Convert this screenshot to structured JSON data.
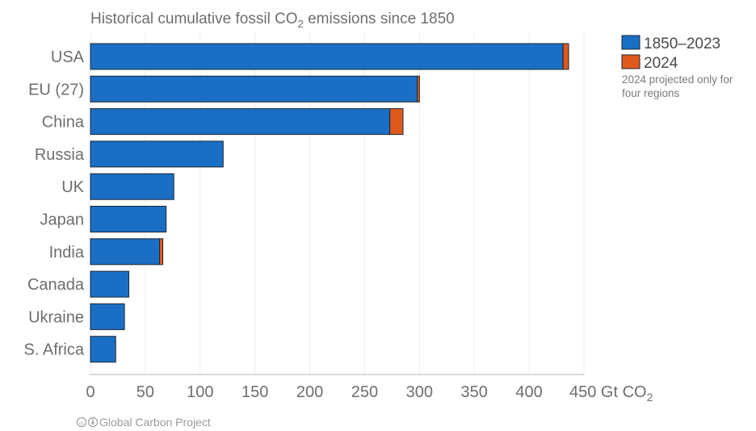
{
  "chart_data": {
    "type": "bar",
    "orientation": "horizontal",
    "stacked": true,
    "title_main": "Historical cumulative fossil CO",
    "title_sub": "2",
    "title_tail": " emissions since 1850",
    "categories": [
      "USA",
      "EU (27)",
      "China",
      "Russia",
      "UK",
      "Japan",
      "India",
      "Canada",
      "Ukraine",
      "S. Africa"
    ],
    "series": [
      {
        "name": "1850–2023",
        "color": "#1a6fc4",
        "values": [
          431,
          298,
          273,
          121,
          76,
          69,
          63,
          35,
          31,
          23
        ]
      },
      {
        "name": "2024",
        "color": "#e05a1c",
        "values": [
          5,
          2,
          12,
          0,
          0,
          0,
          3,
          0,
          0,
          0
        ]
      }
    ],
    "xlim": [
      0,
      450
    ],
    "x_ticks": [
      "0",
      "50",
      "100",
      "150",
      "200",
      "250",
      "300",
      "350",
      "400"
    ],
    "x_unit_label_main": "450 Gt CO",
    "x_unit_label_sub": "2",
    "legend_position": "top-right",
    "note": [
      "2024 projected only for",
      "four regions"
    ],
    "grid": true
  },
  "credit": {
    "icons": [
      "cc-icon",
      "by-icon"
    ],
    "text": "Global Carbon Project"
  }
}
